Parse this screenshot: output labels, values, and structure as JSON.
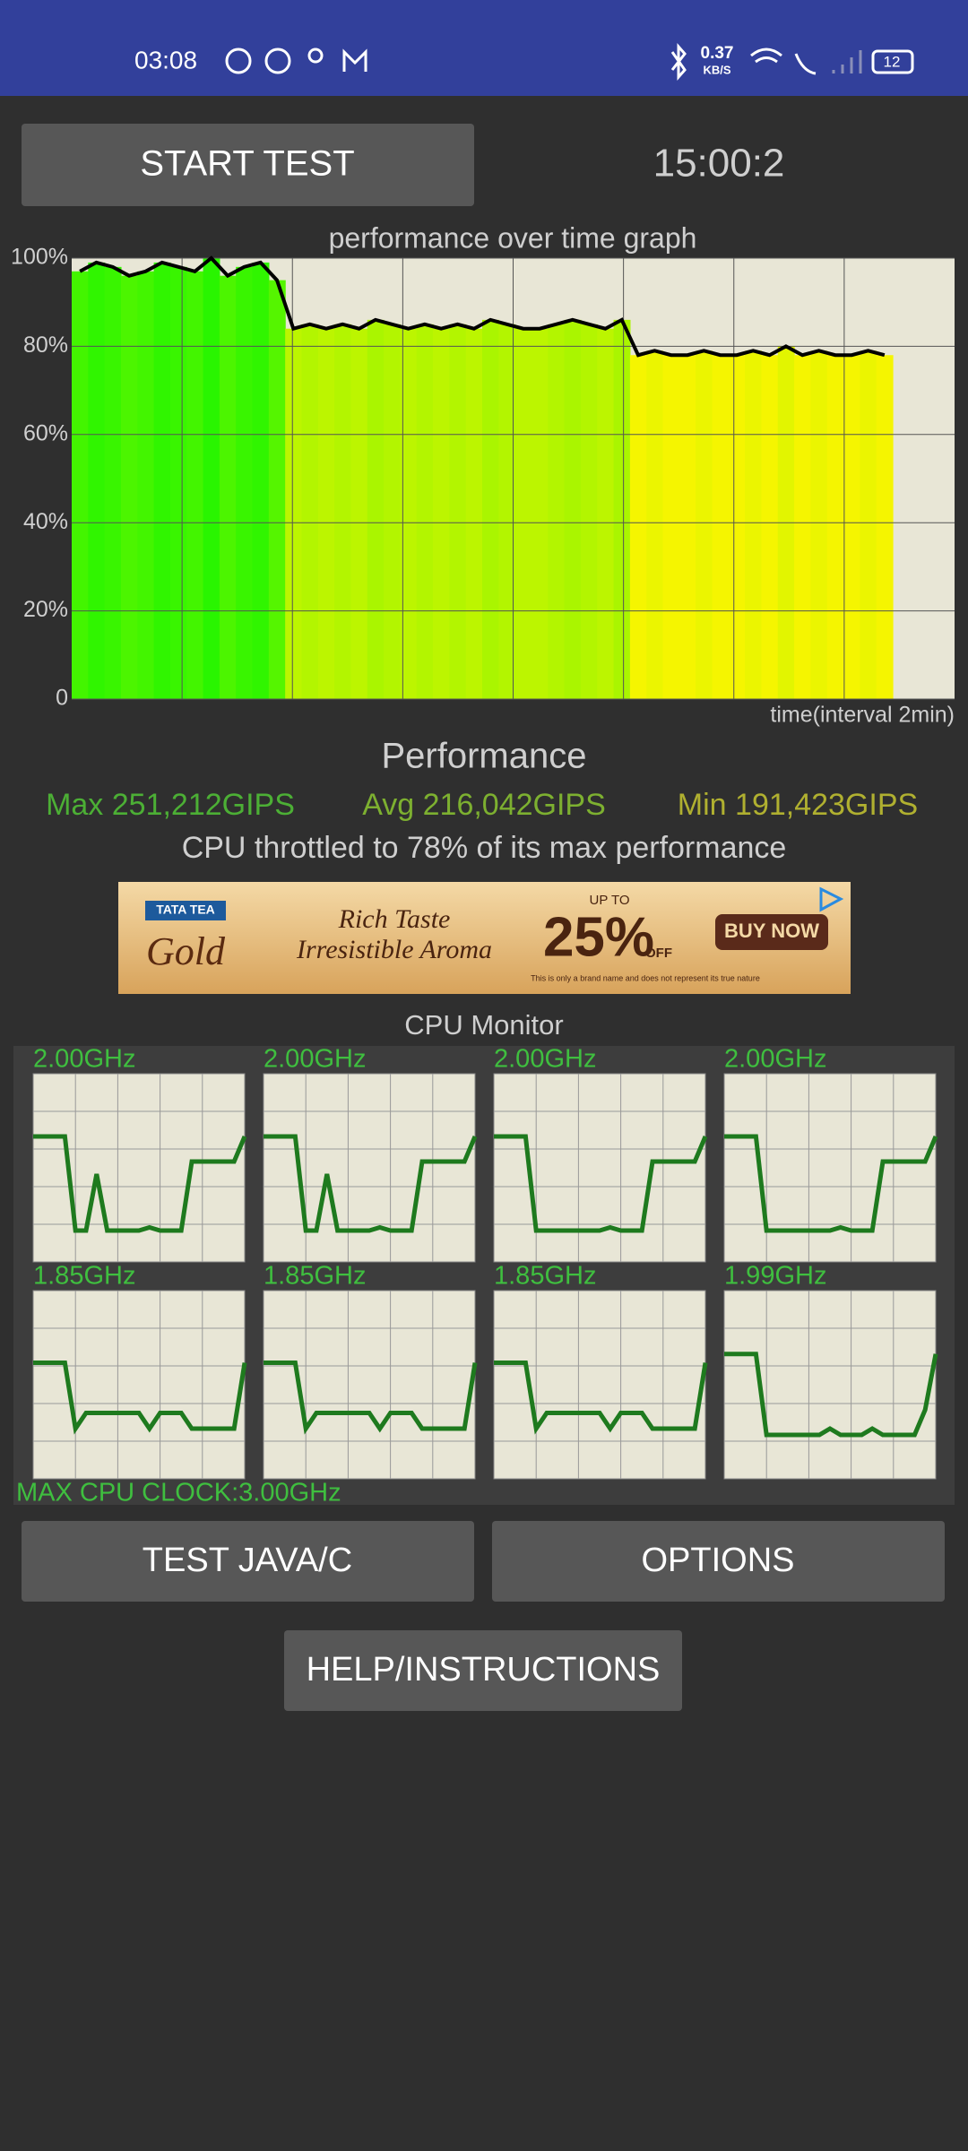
{
  "status_bar": {
    "time": "03:08",
    "net_speed": "0.37",
    "net_unit": "KB/S",
    "battery": "12"
  },
  "start_button": "START TEST",
  "timer": "15:00:2",
  "chart_data": {
    "type": "line",
    "title": "performance over time graph",
    "x_label": "time(interval 2min)",
    "ylim": [
      0,
      100
    ],
    "yticks": [
      0,
      {
        "value": 20,
        "label": "20%"
      },
      {
        "value": 40,
        "label": "40%"
      },
      {
        "value": 60,
        "label": "60%"
      },
      {
        "value": 80,
        "label": "80%"
      },
      {
        "value": 100,
        "label": "100%"
      }
    ],
    "grid": true,
    "color": "#000000",
    "values": [
      97,
      99,
      98,
      96,
      97,
      99,
      98,
      97,
      100,
      96,
      98,
      99,
      95,
      84,
      85,
      84,
      85,
      84,
      86,
      85,
      84,
      85,
      84,
      85,
      84,
      86,
      85,
      84,
      84,
      85,
      86,
      85,
      84,
      86,
      78,
      79,
      78,
      78,
      79,
      78,
      78,
      79,
      78,
      80,
      78,
      79,
      78,
      78,
      79,
      78
    ]
  },
  "performance": {
    "title": "Performance",
    "max": "Max 251,212GIPS",
    "avg": "Avg 216,042GIPS",
    "min": "Min 191,423GIPS",
    "throttle": "CPU throttled to 78% of its max performance"
  },
  "ad": {
    "brand_top": "TATA TEA",
    "brand": "Gold",
    "line1": "Rich Taste",
    "line2": "Irresistible Aroma",
    "up_to": "UP TO",
    "discount": "25%",
    "off": "OFF",
    "cta": "BUY NOW",
    "disclaimer": "This is only a brand name and does not represent its true nature"
  },
  "cpu_monitor": {
    "title": "CPU Monitor",
    "max_clock": "MAX CPU CLOCK:3.00GHz",
    "ylim": [
      0,
      3
    ],
    "color": "#1e7a1e",
    "cores": [
      {
        "freq": "2.00GHz",
        "values": [
          2.0,
          2.0,
          2.0,
          2.0,
          0.5,
          0.5,
          1.4,
          0.5,
          0.5,
          0.5,
          0.5,
          0.55,
          0.5,
          0.5,
          0.5,
          1.6,
          1.6,
          1.6,
          1.6,
          1.6,
          2.0
        ]
      },
      {
        "freq": "2.00GHz",
        "values": [
          2.0,
          2.0,
          2.0,
          2.0,
          0.5,
          0.5,
          1.4,
          0.5,
          0.5,
          0.5,
          0.5,
          0.55,
          0.5,
          0.5,
          0.5,
          1.6,
          1.6,
          1.6,
          1.6,
          1.6,
          2.0
        ]
      },
      {
        "freq": "2.00GHz",
        "values": [
          2.0,
          2.0,
          2.0,
          2.0,
          0.5,
          0.5,
          0.5,
          0.5,
          0.5,
          0.5,
          0.5,
          0.55,
          0.5,
          0.5,
          0.5,
          1.6,
          1.6,
          1.6,
          1.6,
          1.6,
          2.0
        ]
      },
      {
        "freq": "2.00GHz",
        "values": [
          2.0,
          2.0,
          2.0,
          2.0,
          0.5,
          0.5,
          0.5,
          0.5,
          0.5,
          0.5,
          0.5,
          0.55,
          0.5,
          0.5,
          0.5,
          1.6,
          1.6,
          1.6,
          1.6,
          1.6,
          2.0
        ]
      },
      {
        "freq": "1.85GHz",
        "values": [
          1.85,
          1.85,
          1.85,
          1.85,
          0.8,
          1.05,
          1.05,
          1.05,
          1.05,
          1.05,
          1.05,
          0.8,
          1.05,
          1.05,
          1.05,
          0.8,
          0.8,
          0.8,
          0.8,
          0.8,
          1.85
        ]
      },
      {
        "freq": "1.85GHz",
        "values": [
          1.85,
          1.85,
          1.85,
          1.85,
          0.8,
          1.05,
          1.05,
          1.05,
          1.05,
          1.05,
          1.05,
          0.8,
          1.05,
          1.05,
          1.05,
          0.8,
          0.8,
          0.8,
          0.8,
          0.8,
          1.85
        ]
      },
      {
        "freq": "1.85GHz",
        "values": [
          1.85,
          1.85,
          1.85,
          1.85,
          0.8,
          1.05,
          1.05,
          1.05,
          1.05,
          1.05,
          1.05,
          0.8,
          1.05,
          1.05,
          1.05,
          0.8,
          0.8,
          0.8,
          0.8,
          0.8,
          1.85
        ]
      },
      {
        "freq": "1.99GHz",
        "values": [
          1.99,
          1.99,
          1.99,
          1.99,
          0.7,
          0.7,
          0.7,
          0.7,
          0.7,
          0.7,
          0.8,
          0.7,
          0.7,
          0.7,
          0.8,
          0.7,
          0.7,
          0.7,
          0.7,
          1.1,
          1.99
        ]
      }
    ]
  },
  "buttons": {
    "test": "TEST JAVA/C",
    "options": "OPTIONS",
    "help": "HELP/INSTRUCTIONS"
  }
}
